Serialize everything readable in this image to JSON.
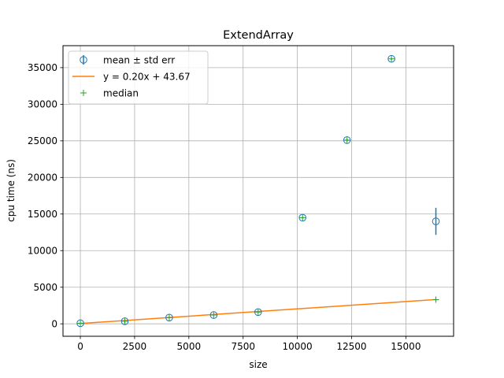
{
  "chart_data": {
    "type": "scatter",
    "title": "ExtendArray",
    "xlabel": "size",
    "ylabel": "cpu time (ns)",
    "xlim": [
      -800,
      17200
    ],
    "ylim": [
      -1700,
      38000
    ],
    "grid": true,
    "legend_position": "top-left",
    "xticks": [
      0,
      2500,
      5000,
      7500,
      10000,
      12500,
      15000
    ],
    "yticks": [
      0,
      5000,
      10000,
      15000,
      20000,
      25000,
      30000,
      35000
    ],
    "xtick_labels": [
      "0",
      "2500",
      "5000",
      "7500",
      "10000",
      "12500",
      "15000"
    ],
    "ytick_labels": [
      "0",
      "5000",
      "10000",
      "15000",
      "20000",
      "25000",
      "30000",
      "35000"
    ],
    "series": [
      {
        "name": "mean ± std err",
        "kind": "errorbar",
        "color": "#1f77b4",
        "x": [
          0,
          2048,
          4096,
          6144,
          8192,
          10240,
          12288,
          14336,
          16384
        ],
        "y": [
          80,
          350,
          850,
          1200,
          1600,
          14500,
          25100,
          36200,
          14000
        ],
        "err": [
          60,
          60,
          60,
          60,
          60,
          80,
          100,
          120,
          1850
        ]
      },
      {
        "name": "y = 0.20x + 43.67",
        "kind": "line",
        "color": "#ff7f0e",
        "x": [
          0,
          16384
        ],
        "y": [
          43.67,
          3320.5
        ]
      },
      {
        "name": "median",
        "kind": "marker",
        "color": "#2ca02c",
        "x": [
          0,
          2048,
          4096,
          6144,
          8192,
          10240,
          12288,
          14336,
          16384
        ],
        "y": [
          80,
          350,
          850,
          1200,
          1600,
          14500,
          25100,
          36200,
          3300
        ]
      }
    ]
  }
}
